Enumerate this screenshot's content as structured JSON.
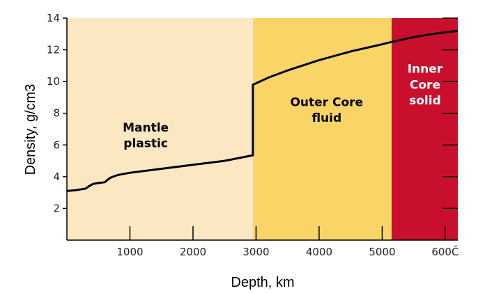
{
  "chart_data": {
    "type": "line",
    "xlabel": "Depth, km",
    "ylabel": "Density, g/cm3",
    "xlim": [
      0,
      6200
    ],
    "ylim": [
      0,
      14
    ],
    "xticks": [
      1000,
      2000,
      3000,
      4000,
      5000,
      6000
    ],
    "xtick_labels": [
      "1000",
      "2000",
      "3000",
      "4000",
      "5000",
      "600Č"
    ],
    "yticks": [
      2,
      4,
      6,
      8,
      10,
      12,
      14
    ],
    "ytick_labels": [
      "2",
      "4",
      "6",
      "8",
      "10",
      "12",
      "14"
    ],
    "grid": false,
    "regions": [
      {
        "x0": 0,
        "x1": 2950,
        "color": "#fbe8c3",
        "label_lines": [
          "Mantle",
          "plastic"
        ],
        "label_color": "#000000",
        "label_x": 1250,
        "label_y": [
          6.85,
          5.85
        ]
      },
      {
        "x0": 2950,
        "x1": 5150,
        "color": "#f9d568",
        "label_lines": [
          "Outer Core",
          "fluid"
        ],
        "label_color": "#000000",
        "label_x": 4120,
        "label_y": [
          8.45,
          7.45
        ]
      },
      {
        "x0": 5150,
        "x1": 6200,
        "color": "#c8102e",
        "label_lines": [
          "Inner",
          "Core",
          "solid"
        ],
        "label_color": "#ffffff",
        "label_x": 5680,
        "label_y": [
          10.55,
          9.55,
          8.55
        ]
      }
    ],
    "series": [
      {
        "color": "#000000",
        "x": [
          0,
          150,
          300,
          350,
          420,
          500,
          600,
          660,
          700,
          800,
          1000,
          1500,
          2000,
          2500,
          2950,
          2950,
          3200,
          3500,
          4000,
          4500,
          5000,
          5150,
          5500,
          5800,
          6000,
          6200
        ],
        "y": [
          3.1,
          3.15,
          3.25,
          3.4,
          3.55,
          3.6,
          3.65,
          3.85,
          3.95,
          4.1,
          4.25,
          4.5,
          4.75,
          5.0,
          5.35,
          9.8,
          10.25,
          10.7,
          11.35,
          11.9,
          12.35,
          12.5,
          12.8,
          13.0,
          13.1,
          13.2
        ]
      }
    ]
  }
}
